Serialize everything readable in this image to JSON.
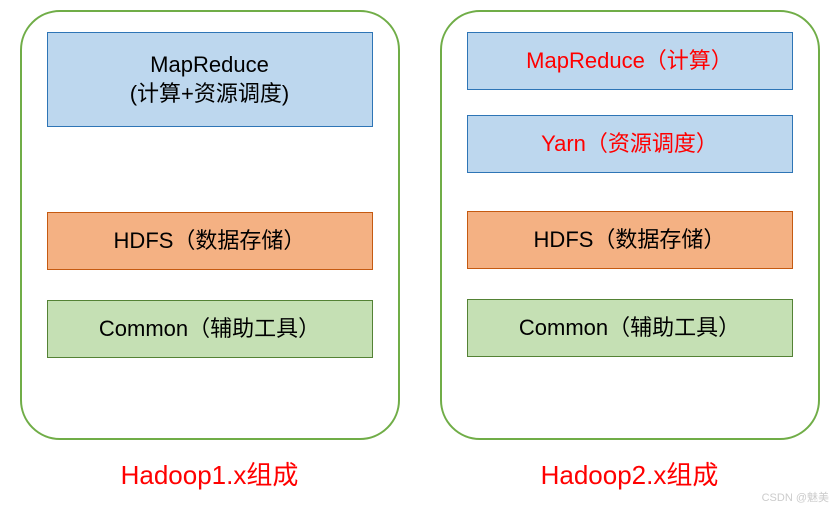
{
  "diagram": {
    "type": "infographic",
    "background_color": "#ffffff",
    "panel_border_color": "#70ad47",
    "panel_border_radius": 40,
    "colors": {
      "blue_fill": "#bdd7ee",
      "blue_border": "#2e75b6",
      "orange_fill": "#f4b183",
      "orange_border": "#c55a11",
      "green_fill": "#c5e0b4",
      "green_border": "#548235",
      "caption_color": "#ff0000",
      "red_text": "#ff0000",
      "black_text": "#000000"
    },
    "fontsize_box": 22,
    "fontsize_caption": 26
  },
  "left": {
    "caption": "Hadoop1.x组成",
    "mapreduce_line1": "MapReduce",
    "mapreduce_line2": "(计算+资源调度)",
    "hdfs": "HDFS（数据存储）",
    "common": "Common（辅助工具）"
  },
  "right": {
    "caption": "Hadoop2.x组成",
    "mapreduce": "MapReduce（计算）",
    "yarn": "Yarn（资源调度）",
    "hdfs": "HDFS（数据存储）",
    "common": "Common（辅助工具）"
  },
  "watermark": "CSDN @魅美"
}
